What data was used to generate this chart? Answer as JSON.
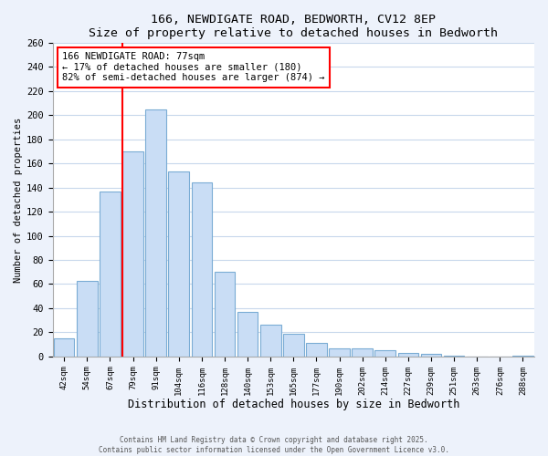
{
  "title": "166, NEWDIGATE ROAD, BEDWORTH, CV12 8EP",
  "subtitle": "Size of property relative to detached houses in Bedworth",
  "xlabel": "Distribution of detached houses by size in Bedworth",
  "ylabel": "Number of detached properties",
  "bar_labels": [
    "42sqm",
    "54sqm",
    "67sqm",
    "79sqm",
    "91sqm",
    "104sqm",
    "116sqm",
    "128sqm",
    "140sqm",
    "153sqm",
    "165sqm",
    "177sqm",
    "190sqm",
    "202sqm",
    "214sqm",
    "227sqm",
    "239sqm",
    "251sqm",
    "263sqm",
    "276sqm",
    "288sqm"
  ],
  "bar_values": [
    15,
    63,
    137,
    170,
    205,
    153,
    144,
    70,
    37,
    26,
    19,
    11,
    7,
    7,
    5,
    3,
    2,
    1,
    0,
    0,
    1
  ],
  "bar_color": "#c9ddf5",
  "bar_edge_color": "#7aacd4",
  "vline_x_index": 3,
  "vline_color": "red",
  "annotation_line1": "166 NEWDIGATE ROAD: 77sqm",
  "annotation_line2": "← 17% of detached houses are smaller (180)",
  "annotation_line3": "82% of semi-detached houses are larger (874) →",
  "annotation_box_color": "white",
  "annotation_box_edge_color": "red",
  "ylim": [
    0,
    260
  ],
  "yticks": [
    0,
    20,
    40,
    60,
    80,
    100,
    120,
    140,
    160,
    180,
    200,
    220,
    240,
    260
  ],
  "footer1": "Contains HM Land Registry data © Crown copyright and database right 2025.",
  "footer2": "Contains public sector information licensed under the Open Government Licence v3.0.",
  "fig_bg_color": "#edf2fb",
  "plot_bg_color": "#ffffff",
  "grid_color": "#c8d8ec"
}
